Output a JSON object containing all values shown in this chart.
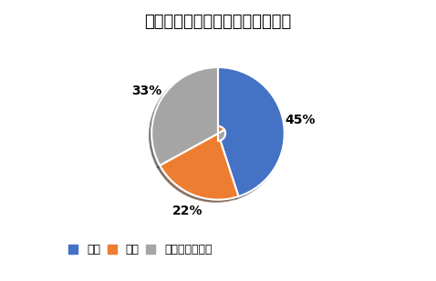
{
  "title": "フォレスターの燃費・満足度調査",
  "labels": [
    "満足",
    "不満",
    "どちらでもない"
  ],
  "values": [
    45,
    22,
    33
  ],
  "colors": [
    "#4472C4",
    "#ED7D31",
    "#A5A5A5"
  ],
  "pct_labels": [
    "45%",
    "22%",
    "33%"
  ],
  "legend_labels": [
    "満足",
    "不満",
    "どちらでもない"
  ],
  "startangle": 90,
  "title_fontsize": 13,
  "pct_fontsize": 10,
  "legend_fontsize": 9
}
